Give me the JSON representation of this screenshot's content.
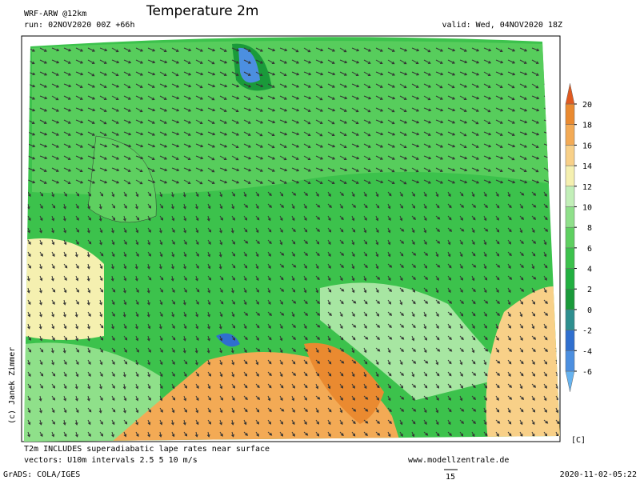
{
  "header": {
    "model": "WRF-ARW @12km",
    "title": "Temperature 2m",
    "run": "run: 02NOV2020 00Z +66h",
    "valid": "valid: Wed, 04NOV2020 18Z"
  },
  "colorbar": {
    "ticks": [
      -6,
      -4,
      -2,
      0,
      2,
      4,
      6,
      8,
      10,
      12,
      14,
      16,
      18,
      20
    ],
    "unit": "[C]",
    "colors": [
      "#66b3f0",
      "#4c8fe0",
      "#2f6fcf",
      "#2e8f8f",
      "#1a9a3a",
      "#22b040",
      "#3cc24c",
      "#5ed060",
      "#8fe08a",
      "#c2efb8",
      "#f5f0b0",
      "#f8d088",
      "#f3aa55",
      "#ea8a30",
      "#e05a20"
    ]
  },
  "notes": [
    "T2m INCLUDES superadiabatic lape rates near surface",
    "vectors: U10m intervals 2.5 5 10 m/s"
  ],
  "credit": "(c) Janek Zimmer",
  "website": "www.modellzentrale.de",
  "software": "GrADS: COLA/IGES",
  "arrow_scale": "15",
  "timestamp": "2020-11-02-05:22"
}
